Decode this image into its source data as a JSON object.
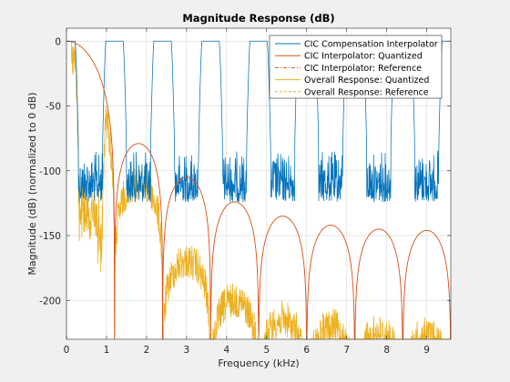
{
  "chart_data": {
    "type": "line",
    "title": "Magnitude Response (dB)",
    "xlabel": "Frequency (kHz)",
    "ylabel": "Magnitude (dB) (normalized to 0 dB)",
    "xlim": [
      0,
      9.6
    ],
    "ylim": [
      -230,
      10
    ],
    "xticks": [
      0,
      1,
      2,
      3,
      4,
      5,
      6,
      7,
      8,
      9
    ],
    "yticks": [
      0,
      -50,
      -100,
      -150,
      -200
    ],
    "xtick_labels": [
      "0",
      "1",
      "2",
      "3",
      "4",
      "5",
      "6",
      "7",
      "8",
      "9"
    ],
    "ytick_labels": [
      "0",
      "-50",
      "-100",
      "-150",
      "-200"
    ],
    "grid": true,
    "legend_position": "top-right",
    "series": [
      {
        "name": "CIC Compensation Interpolator",
        "color": "#0072BD",
        "style": "solid",
        "passband_centers_khz": [
          0,
          1.2,
          2.4,
          3.6,
          4.8,
          6.0,
          7.2,
          8.4,
          9.6
        ],
        "passband_halfwidth_khz": 0.3,
        "passband_level_db": 0,
        "stopband_level_db": -82,
        "stopband_ripple_floor_db": -125
      },
      {
        "name": "CIC Interpolator: Quantized",
        "color": "#D95319",
        "style": "solid",
        "null_spacing_khz": 1.2,
        "lobe_peaks_db": [
          0,
          -79,
          -105,
          -124,
          -135,
          -142,
          -145,
          -146
        ]
      },
      {
        "name": "CIC Interpolator: Reference",
        "color": "#D95319",
        "style": "dash-dot"
      },
      {
        "name": "Overall Response: Quantized",
        "color": "#EDB120",
        "style": "solid",
        "lobe_peaks_db": [
          0,
          -95,
          -155,
          -185,
          -200,
          -206,
          -210,
          -212
        ]
      },
      {
        "name": "Overall Response: Reference",
        "color": "#EDB120",
        "style": "dashed"
      }
    ]
  }
}
